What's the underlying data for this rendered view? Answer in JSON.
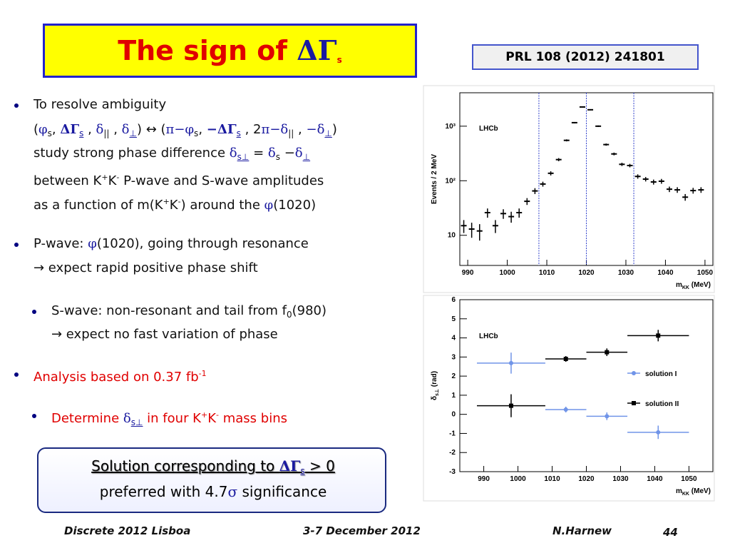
{
  "title": [
    "The sign of ",
    "ΔΓ",
    "s"
  ],
  "reference": "PRL 108 (2012) 241801",
  "bullets": [
    {
      "lines": [
        [
          "To resolve ambiguity"
        ],
        [
          "(",
          "φ",
          "s",
          ", ",
          "ΔΓ",
          "s",
          " , ",
          "δ",
          "||",
          " , ",
          "δ",
          "⊥",
          ") ↔ (",
          "π−φ",
          "s",
          ", ",
          "−ΔΓ",
          "s",
          " , 2",
          "π−δ",
          "||",
          " , ",
          "−δ",
          "⊥",
          ")"
        ],
        [
          "study strong phase difference ",
          "δ",
          "s⊥",
          " = ",
          "δ",
          "s",
          " −",
          "δ",
          "⊥"
        ],
        [
          "between K",
          "+",
          "K",
          "-",
          " P-wave and S-wave amplitudes"
        ],
        [
          "as a function of m(K",
          "+",
          "K",
          "-",
          ") around the ",
          "φ",
          "(1020)"
        ]
      ]
    },
    {
      "lines": [
        [
          "P-wave: ",
          "φ",
          "(1020), going through resonance"
        ],
        [
          "→ expect rapid positive phase shift"
        ]
      ]
    },
    {
      "lines": [
        [
          "S-wave: non-resonant and tail from f",
          "0",
          "(980)"
        ],
        [
          "→ expect no fast variation of phase"
        ]
      ]
    },
    {
      "lines": [
        [
          "Analysis based on 0.37 fb",
          "-1"
        ]
      ]
    },
    {
      "lines": [
        [
          "Determine ",
          "δ",
          "s⊥",
          " in four K",
          "+",
          "K",
          "-",
          " mass bins"
        ]
      ]
    }
  ],
  "box": [
    [
      "Solution corresponding to ",
      "ΔΓ",
      "s",
      " > 0"
    ],
    [
      "preferred with 4.7",
      "σ",
      " significance"
    ]
  ],
  "footer": {
    "left": "Discrete 2012 Lisboa",
    "center": "3-7 December 2012",
    "author": "N.Harnew",
    "page": 44
  },
  "chart_data": [
    {
      "type": "errorbar",
      "annotation": "LHCb",
      "ylabel": "Events / 2 MeV",
      "xlabel": [
        "m",
        "KK",
        " (MeV)"
      ],
      "yscale": "log",
      "color": "#000000",
      "x": [
        989,
        991,
        993,
        995,
        997,
        999,
        1001,
        1003,
        1005,
        1007,
        1009,
        1011,
        1013,
        1015,
        1017,
        1019,
        1021,
        1023,
        1025,
        1027,
        1029,
        1031,
        1033,
        1035,
        1037,
        1039,
        1041,
        1043,
        1045,
        1047,
        1049
      ],
      "values": [
        15,
        13,
        12,
        26,
        15,
        25,
        22,
        26,
        42,
        65,
        87,
        137,
        244,
        550,
        1160,
        2250,
        2000,
        1000,
        460,
        310,
        200,
        190,
        120,
        107,
        95,
        98,
        70,
        68,
        50,
        66,
        68
      ],
      "errors": [
        4,
        4,
        4,
        5,
        4,
        5,
        5,
        5,
        6,
        8,
        9,
        12,
        16,
        23,
        34,
        47,
        45,
        32,
        21,
        18,
        14,
        14,
        11,
        10,
        10,
        10,
        8,
        8,
        7,
        8,
        8
      ],
      "vlines": [
        1008,
        1020,
        1032
      ],
      "vline_color": "#3344cc",
      "xlim": [
        988,
        1052
      ],
      "xticks": [
        990,
        1000,
        1010,
        1020,
        1030,
        1040,
        1050
      ],
      "ylim": [
        2.8,
        4100
      ],
      "yticks": [
        10,
        {
          "value": 100,
          "label": "10²"
        },
        {
          "value": 1000,
          "label": "10³"
        }
      ]
    },
    {
      "type": "errorbar",
      "annotation": "LHCb",
      "ylabel": [
        "δ",
        "s⊥",
        " (rad)"
      ],
      "xlabel": [
        "m",
        "KK",
        " (MeV)"
      ],
      "bins": [
        988,
        1008,
        1020,
        1032,
        1050
      ],
      "legend": "right",
      "series": [
        {
          "name": "solution I",
          "color": "#7094e8",
          "marker": "circle",
          "x": [
            998,
            1014,
            1026,
            1041
          ],
          "values": [
            2.68,
            0.25,
            -0.1,
            -0.94
          ],
          "errors": [
            0.55,
            0.15,
            0.2,
            0.35
          ]
        },
        {
          "name": "solution II",
          "color": "#000000",
          "marker": "square",
          "x": [
            998,
            1014,
            1026,
            1041
          ],
          "values": [
            0.45,
            2.9,
            3.25,
            4.12
          ],
          "errors": [
            0.6,
            0.15,
            0.2,
            0.3
          ]
        }
      ],
      "xlim": [
        983,
        1057
      ],
      "xticks": [
        990,
        1000,
        1010,
        1020,
        1030,
        1040,
        1050
      ],
      "ylim": [
        -3,
        6
      ],
      "yticks": [
        -3,
        -2,
        -1,
        0,
        1,
        2,
        3,
        4,
        5,
        6
      ]
    }
  ]
}
